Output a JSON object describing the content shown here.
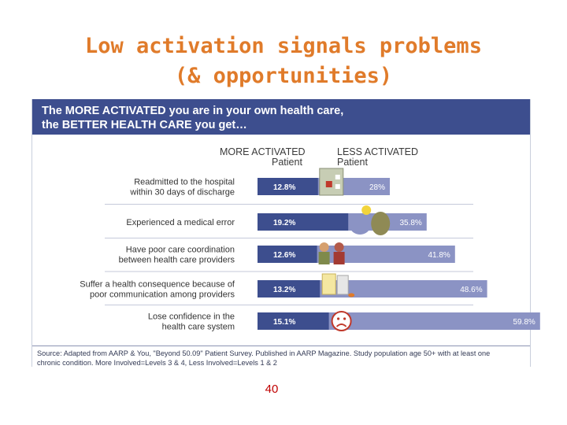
{
  "slide": {
    "title_line1": "Low activation signals problems",
    "title_line2": "(& opportunities)",
    "page_number": "40"
  },
  "figure": {
    "header_line1": "The MORE ACTIVATED you are in your own health care,",
    "header_line2": "the BETTER HEALTH CARE you get…",
    "source_line1": "Source: Adapted from AARP & You, \"Beyond 50.09\" Patient Survey. Published in AARP Magazine. Study population age 50+ with at least one",
    "source_line2": "chronic condition. More Involved=Levels 3 & 4, Less Involved=Levels 1 & 2"
  },
  "chart_data": {
    "type": "bar",
    "title": "The MORE ACTIVATED you are in your own health care, the BETTER HEALTH CARE you get…",
    "unit": "%",
    "column_headers": [
      [
        "MORE ACTIVATED",
        "Patient"
      ],
      [
        "LESS ACTIVATED",
        "Patient"
      ]
    ],
    "categories": [
      [
        "Readmitted to the hospital",
        "within 30 days of discharge"
      ],
      [
        "Experienced a medical error"
      ],
      [
        "Have poor care coordination",
        "between health care providers"
      ],
      [
        "Suffer a health consequence because of",
        "poor communication among providers"
      ],
      [
        "Lose confidence in the",
        "health care system"
      ]
    ],
    "series": [
      {
        "name": "MORE ACTIVATED Patient",
        "values": [
          12.8,
          19.2,
          12.6,
          13.2,
          15.1
        ],
        "labels": [
          "12.8%",
          "19.2%",
          "12.6%",
          "13.2%",
          "15.1%"
        ],
        "color": "#3d4e8e"
      },
      {
        "name": "LESS ACTIVATED Patient",
        "values": [
          28,
          35.8,
          41.8,
          48.6,
          59.8
        ],
        "labels": [
          "28%",
          "35.8%",
          "41.8%",
          "48.6%",
          "59.8%"
        ],
        "color": "#8b93c4"
      }
    ],
    "icons": [
      "hospital-icon",
      "doctor-lightbulb-icon",
      "two-doctors-icon",
      "pill-bottles-icon",
      "sad-face-icon"
    ],
    "grid": false,
    "legend": "column headers above bars"
  }
}
